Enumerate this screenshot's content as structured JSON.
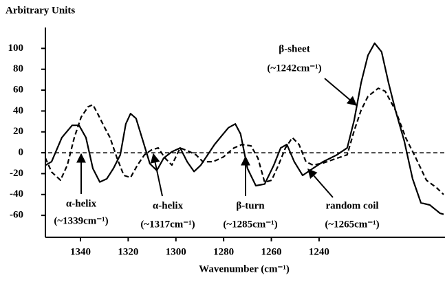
{
  "chart_data": {
    "type": "line",
    "title": "Arbitrary Units",
    "x_label": "Wavenumber (cm⁻¹)",
    "xlim": [
      1354.7,
      1187.8
    ],
    "ylim": [
      -81,
      120
    ],
    "xticks": [
      1340,
      1320,
      1300,
      1280,
      1260,
      1240
    ],
    "yticks": [
      -60,
      -40,
      -20,
      0,
      20,
      40,
      60,
      80,
      100
    ],
    "hline": 0,
    "series": [
      {
        "color": "#000000",
        "line_style": "solid",
        "x": [
          1354.7,
          1352.1,
          1347.8,
          1343.5,
          1340.6,
          1337.7,
          1334.8,
          1331.9,
          1329.0,
          1326.2,
          1323.3,
          1321.0,
          1319.0,
          1316.7,
          1313.8,
          1310.9,
          1308.0,
          1305.1,
          1301.7,
          1298.2,
          1295.3,
          1292.4,
          1289.6,
          1286.7,
          1283.8,
          1280.9,
          1278.0,
          1275.1,
          1272.9,
          1270.0,
          1266.5,
          1262.8,
          1259.0,
          1256.1,
          1253.5,
          1250.4,
          1246.9,
          1242.6,
          1238.3,
          1232.5,
          1228.2,
          1225.3,
          1222.4,
          1219.5,
          1216.7,
          1213.8,
          1210.9,
          1208.0,
          1204.3,
          1200.8,
          1197.3,
          1193.6,
          1189.3,
          1187.8
        ],
        "values": [
          -12,
          -8.6,
          14.5,
          26.3,
          26.3,
          14.5,
          -15,
          -28,
          -25,
          -15,
          -2,
          27.6,
          37.5,
          32.9,
          11.2,
          -10.5,
          -17,
          -5,
          1,
          4.6,
          -8.6,
          -18,
          -12,
          -2,
          8,
          16,
          24,
          27.6,
          18,
          -15,
          -31.6,
          -30,
          -12,
          4.6,
          8,
          -8.6,
          -21.7,
          -15,
          -8.6,
          -2,
          4.6,
          31,
          67,
          93.4,
          105,
          96.7,
          67,
          40.8,
          11.2,
          -25,
          -48,
          -50,
          -58,
          -59
        ]
      },
      {
        "color": "#000000",
        "line_style": "dashed",
        "x": [
          1354.7,
          1352.1,
          1348.4,
          1345.5,
          1342.6,
          1339.7,
          1336.8,
          1334.8,
          1332.8,
          1329.9,
          1327.6,
          1324.7,
          1321.8,
          1319.0,
          1316.1,
          1313.2,
          1310.3,
          1307.4,
          1304.6,
          1301.7,
          1298.2,
          1294.5,
          1291.6,
          1288.7,
          1284.4,
          1280.1,
          1275.7,
          1272.3,
          1268.5,
          1265.6,
          1262.8,
          1259.9,
          1257.0,
          1254.1,
          1251.2,
          1248.4,
          1245.5,
          1242.6,
          1238.3,
          1232.5,
          1228.2,
          1225.3,
          1222.4,
          1219.5,
          1215.2,
          1212.3,
          1208.0,
          1203.7,
          1199.4,
          1195.0,
          1190.7,
          1187.8
        ],
        "values": [
          -5,
          -18.4,
          -26.3,
          -11.8,
          14.5,
          34.2,
          44,
          46,
          37.5,
          24.3,
          14.5,
          -5,
          -21.7,
          -23.7,
          -11.8,
          -2,
          2.6,
          4.6,
          -5,
          -11.8,
          4.6,
          1.3,
          -2,
          -8.6,
          -8.6,
          -4,
          4.6,
          7.9,
          6.6,
          -5.3,
          -28.3,
          -26.3,
          -11.8,
          4.6,
          14.5,
          7.9,
          -8.6,
          -11.8,
          -9.9,
          -5.3,
          -2,
          21,
          40.8,
          54,
          61.8,
          59,
          40.8,
          14.5,
          -5.3,
          -26.3,
          -33.6,
          -40
        ]
      }
    ],
    "annotations": [
      {
        "label": "β-sheet",
        "detail": "(~1242cm⁻¹)"
      },
      {
        "label": "α-helix",
        "detail": "(~1339cm⁻¹)"
      },
      {
        "label": "α-helix",
        "detail": "(~1317cm⁻¹)"
      },
      {
        "label": "β-turn",
        "detail": "(~1285cm⁻¹)"
      },
      {
        "label": "random coil",
        "detail": "(~1265cm⁻¹)"
      }
    ]
  }
}
